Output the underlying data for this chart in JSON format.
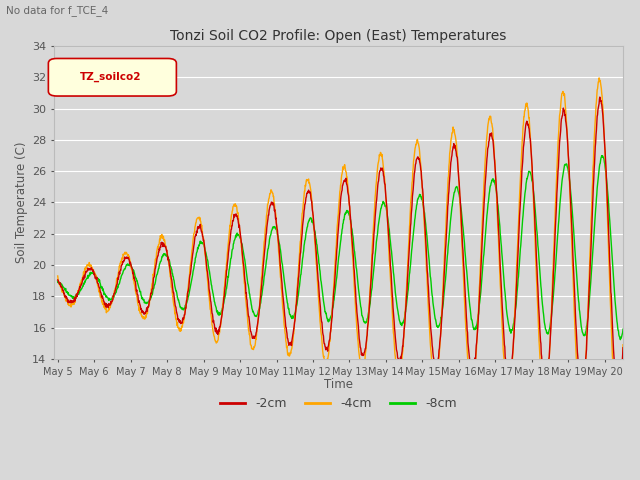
{
  "title": "Tonzi Soil CO2 Profile: Open (East) Temperatures",
  "subtitle": "No data for f_TCE_4",
  "ylabel": "Soil Temperature (C)",
  "xlabel": "Time",
  "legend_label": "TZ_soilco2",
  "ylim": [
    14,
    34
  ],
  "color_2cm": "#cc0000",
  "color_4cm": "#ffa500",
  "color_8cm": "#00cc00",
  "bg_color": "#d8d8d8",
  "grid_color": "#ffffff",
  "tick_labels": [
    "May 5",
    "May 6",
    "May 7",
    "May 8",
    "May 9",
    "May 10",
    "May 11",
    "May 12",
    "May 13",
    "May 14",
    "May 15",
    "May 16",
    "May 17",
    "May 18",
    "May 19",
    "May 20"
  ],
  "tick_positions": [
    0,
    1,
    2,
    3,
    4,
    5,
    6,
    7,
    8,
    9,
    10,
    11,
    12,
    13,
    14,
    15
  ]
}
